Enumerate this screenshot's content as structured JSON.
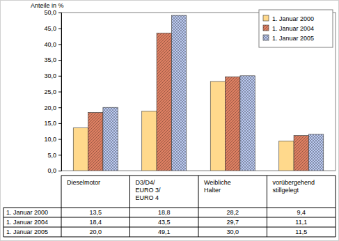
{
  "chart_data": {
    "type": "bar",
    "y_label": "Anteile in %",
    "categories": [
      "Dieselmotor",
      "D3/D4/\nEURO 3/\nEURO 4",
      "Weibliche\nHalter",
      "vorübergehend\nstillgelegt"
    ],
    "series": [
      {
        "name": "1. Januar 2000",
        "color": "#ffd98c",
        "values": [
          13.5,
          18.8,
          28.2,
          9.4
        ],
        "value_labels": [
          "13,5",
          "18,8",
          "28,2",
          "9,4"
        ]
      },
      {
        "name": "1. Januar 2004",
        "color": "#dc7f62",
        "values": [
          18.4,
          43.5,
          29.7,
          11.1
        ],
        "value_labels": [
          "18,4",
          "43,5",
          "29,7",
          "11,1"
        ]
      },
      {
        "name": "1. Januar 2005",
        "color": "#bccbf2",
        "values": [
          20.0,
          49.1,
          30.0,
          11.5
        ],
        "value_labels": [
          "20,0",
          "49,1",
          "30,0",
          "11,5"
        ]
      }
    ],
    "ylim": [
      0,
      50
    ],
    "yticks": [
      {
        "value": 0,
        "label": "0,0"
      },
      {
        "value": 5,
        "label": "5,0"
      },
      {
        "value": 10,
        "label": "10,0"
      },
      {
        "value": 15,
        "label": "15,0"
      },
      {
        "value": 20,
        "label": "20,0"
      },
      {
        "value": 25,
        "label": "25,0"
      },
      {
        "value": 30,
        "label": "30,0"
      },
      {
        "value": 35,
        "label": "35,0"
      },
      {
        "value": 40,
        "label": "40,0"
      },
      {
        "value": 45,
        "label": "45,0"
      },
      {
        "value": 50,
        "label": "50,0"
      }
    ],
    "grid": false,
    "legend": "top-right"
  }
}
